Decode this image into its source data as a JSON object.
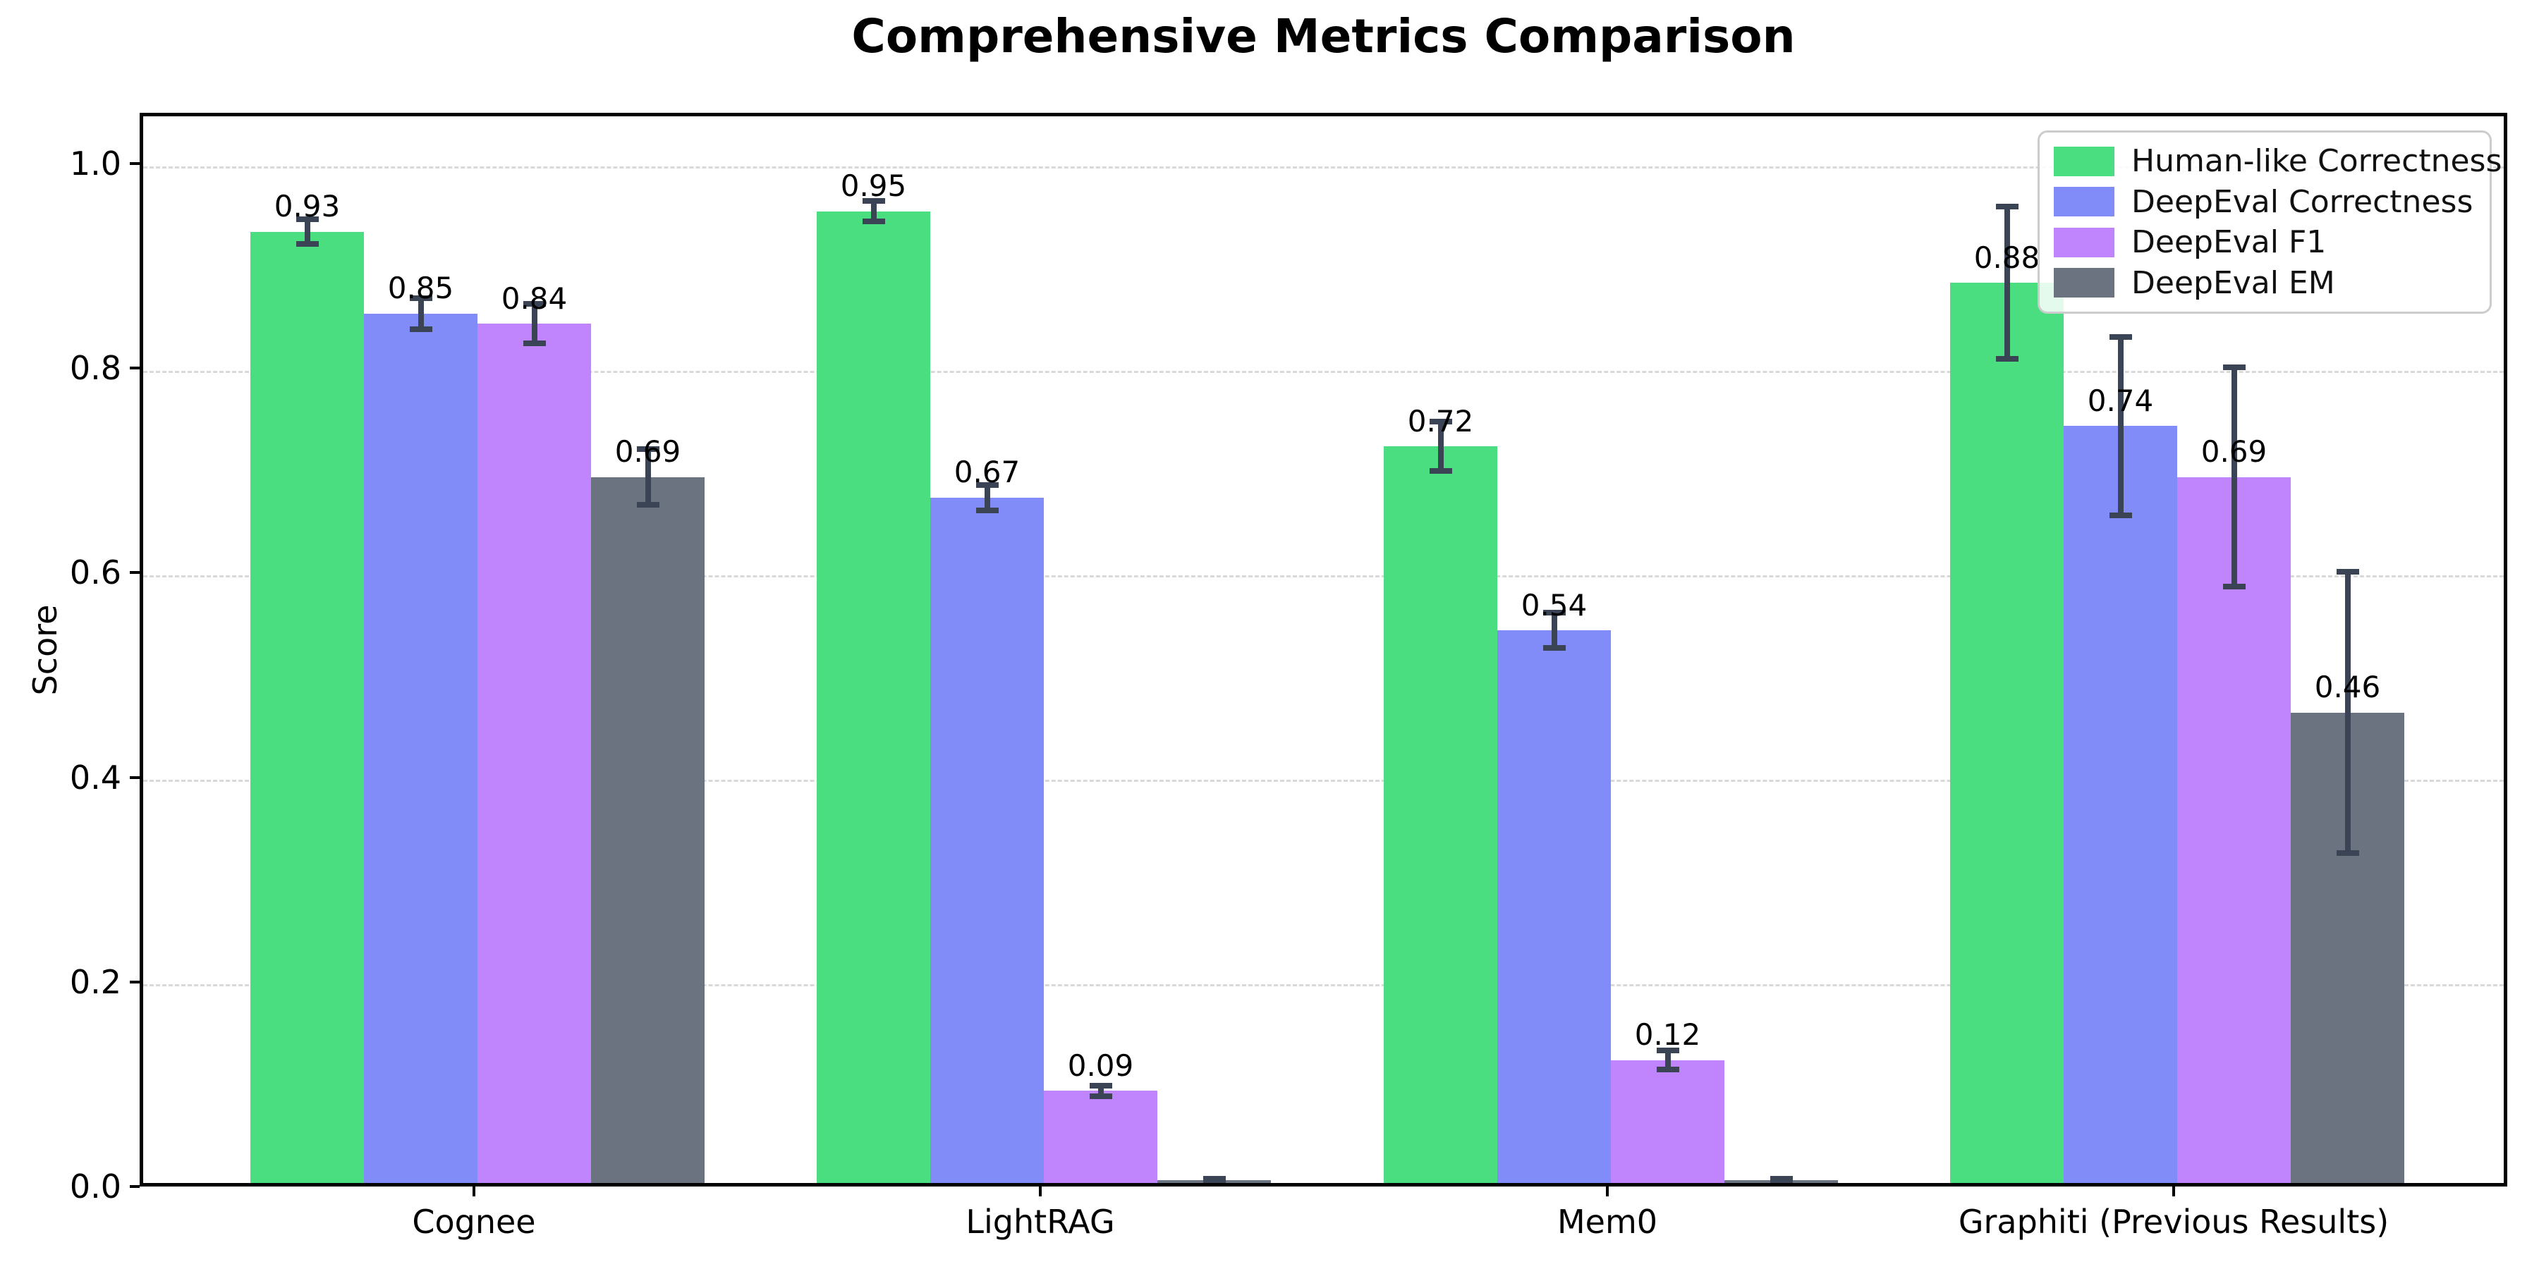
{
  "chart_data": {
    "type": "bar",
    "title": "Comprehensive Metrics Comparison",
    "ylabel": "Score",
    "xlabel": "",
    "categories": [
      "Cognee",
      "LightRAG",
      "Mem0",
      "Graphiti (Previous Results)"
    ],
    "series": [
      {
        "name": "Human-like Correctness",
        "color": "#4ade80",
        "values": [
          0.93,
          0.95,
          0.72,
          0.88
        ],
        "errors": [
          0.015,
          0.013,
          0.027,
          0.077
        ],
        "labels": [
          "0.93",
          "0.95",
          "0.72",
          "0.88"
        ]
      },
      {
        "name": "DeepEval Correctness",
        "color": "#818cf8",
        "values": [
          0.85,
          0.67,
          0.54,
          0.74
        ],
        "errors": [
          0.018,
          0.015,
          0.02,
          0.09
        ],
        "labels": [
          "0.85",
          "0.67",
          "0.54",
          "0.74"
        ]
      },
      {
        "name": "DeepEval F1",
        "color": "#c084fc",
        "values": [
          0.84,
          0.09,
          0.12,
          0.69
        ],
        "errors": [
          0.022,
          0.008,
          0.012,
          0.11
        ],
        "labels": [
          "0.84",
          "0.09",
          "0.12",
          "0.69"
        ]
      },
      {
        "name": "DeepEval EM",
        "color": "#6b7280",
        "values": [
          0.69,
          0.003,
          0.003,
          0.46
        ],
        "errors": [
          0.03,
          0.004,
          0.004,
          0.14
        ],
        "labels": [
          "0.69",
          "",
          "",
          "0.46"
        ]
      }
    ],
    "ylim": [
      0.0,
      1.0
    ],
    "yticks": [
      "0.0",
      "0.2",
      "0.4",
      "0.6",
      "0.8",
      "1.0"
    ],
    "grid": "horizontal dashed",
    "legend_position": "upper right",
    "colors": {
      "error_bar": "#3a4454",
      "gridline": "#d9d9d9",
      "spine": "#000000",
      "background": "#ffffff",
      "legend_border": "#cccccc"
    }
  }
}
